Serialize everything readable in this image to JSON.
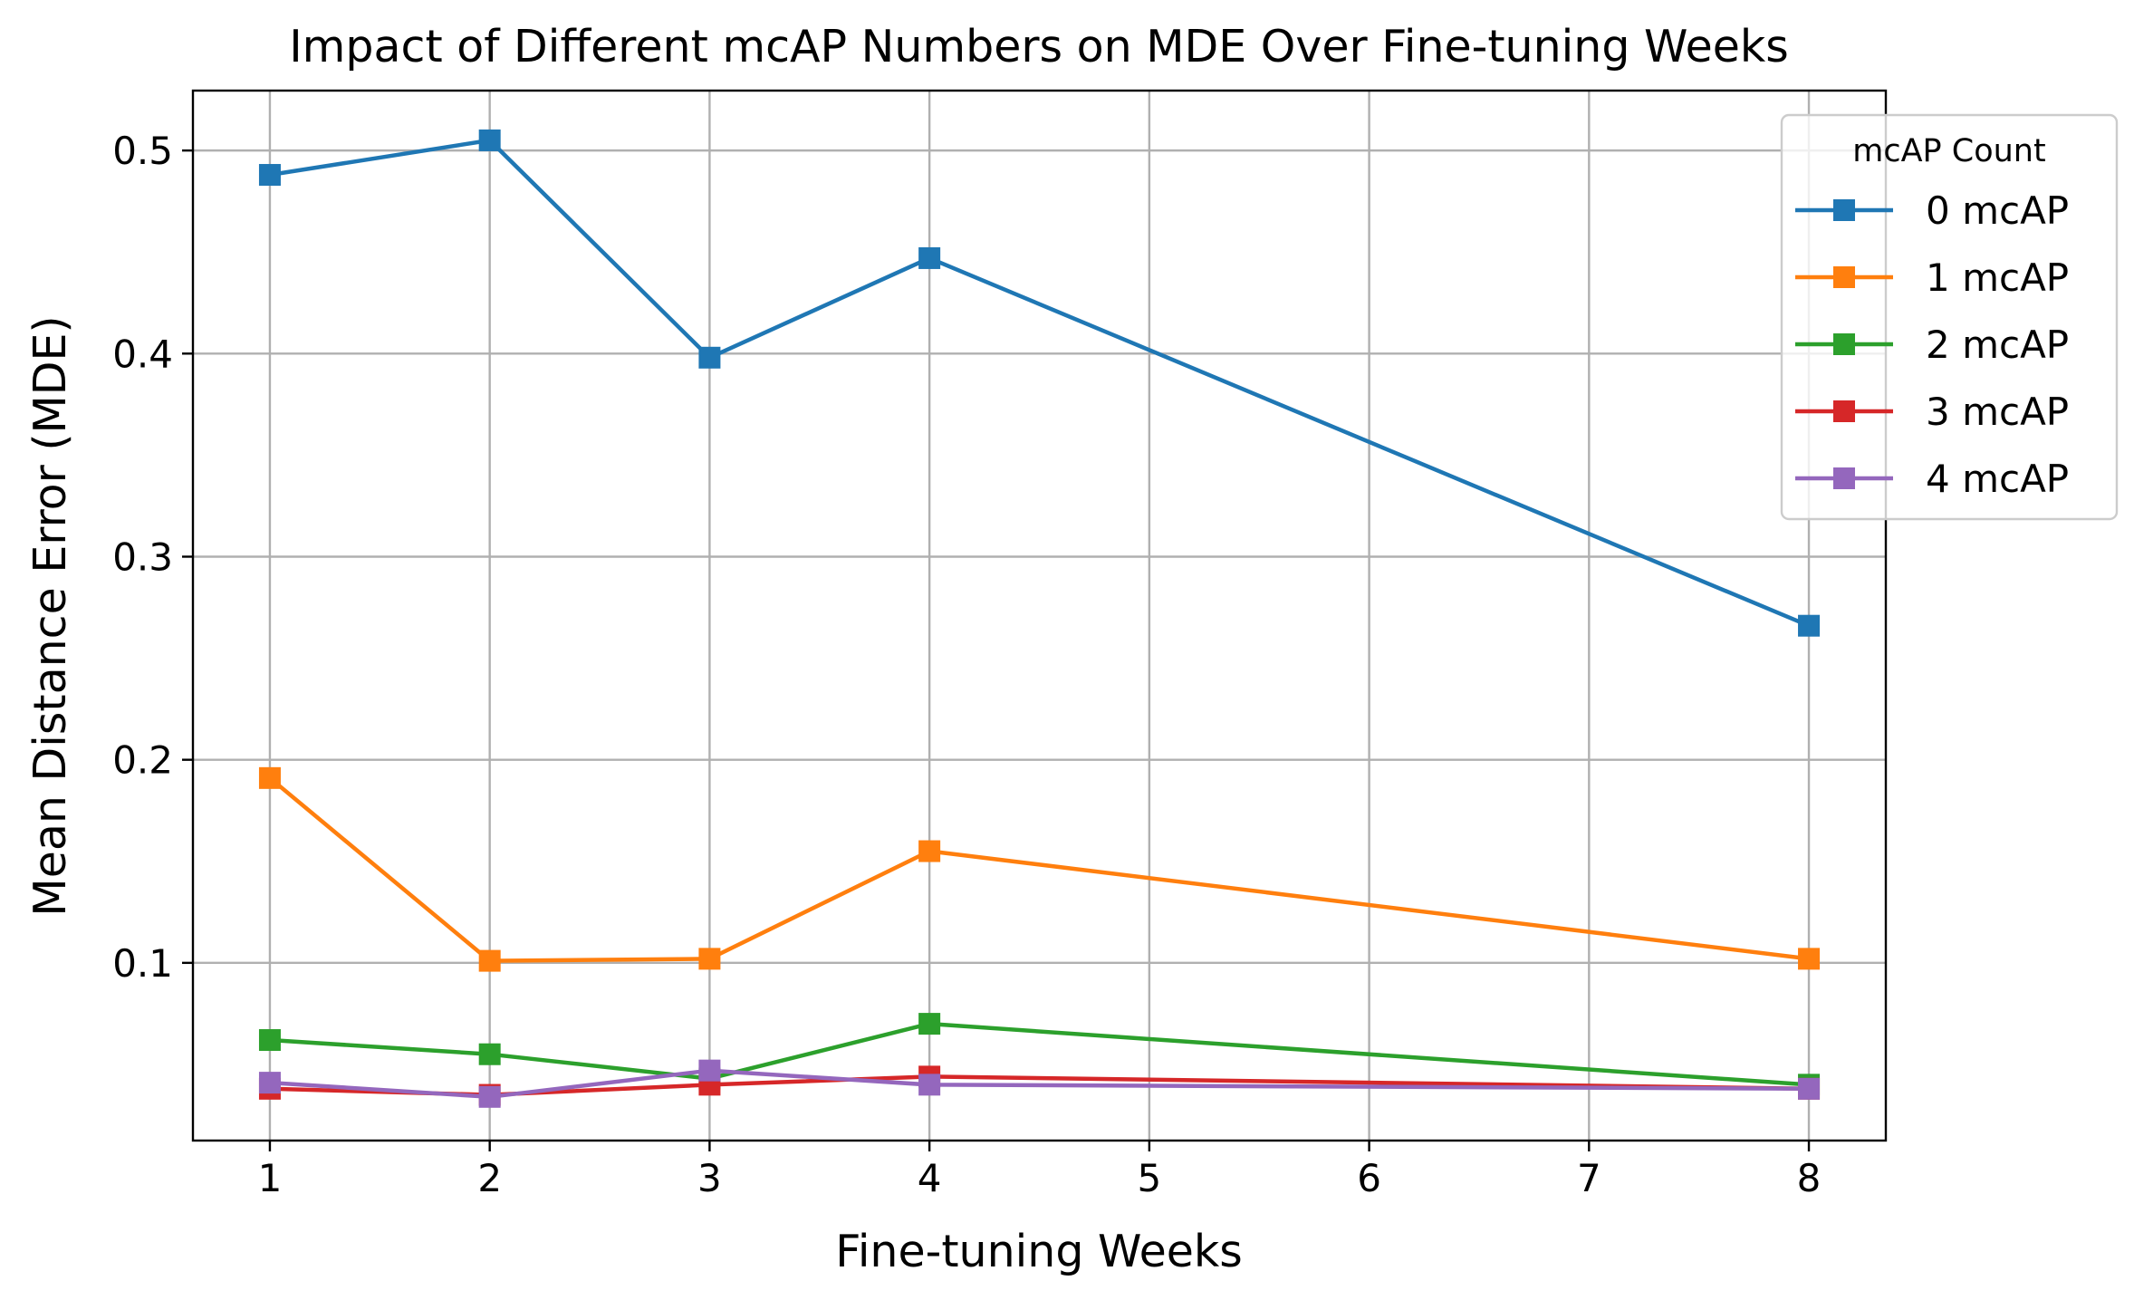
{
  "chart_data": {
    "type": "line",
    "title": "Impact of Different mcAP Numbers on MDE Over Fine-tuning Weeks",
    "xlabel": "Fine-tuning Weeks",
    "ylabel": "Mean Distance Error (MDE)",
    "xlim": [
      0.65,
      8.35
    ],
    "ylim": [
      0.0125,
      0.5295
    ],
    "xticks": [
      1,
      2,
      3,
      4,
      5,
      6,
      7,
      8
    ],
    "yticks": [
      0.1,
      0.2,
      0.3,
      0.4,
      0.5
    ],
    "xtick_labels": [
      "1",
      "2",
      "3",
      "4",
      "5",
      "6",
      "7",
      "8"
    ],
    "ytick_labels": [
      "0.1",
      "0.2",
      "0.3",
      "0.4",
      "0.5"
    ],
    "grid": true,
    "legend": {
      "title": "mcAP Count",
      "placement": "upper-right-outside"
    },
    "x": [
      1,
      2,
      3,
      4,
      8
    ],
    "series": [
      {
        "name": "0 mcAP",
        "color": "#1f77b4",
        "marker": "square",
        "values": [
          0.488,
          0.505,
          0.398,
          0.447,
          0.266
        ]
      },
      {
        "name": "1 mcAP",
        "color": "#ff7f0e",
        "marker": "square",
        "values": [
          0.191,
          0.101,
          0.102,
          0.155,
          0.102
        ]
      },
      {
        "name": "2 mcAP",
        "color": "#2ca02c",
        "marker": "square",
        "values": [
          0.062,
          0.055,
          0.043,
          0.07,
          0.04
        ]
      },
      {
        "name": "3 mcAP",
        "color": "#d62728",
        "marker": "square",
        "values": [
          0.038,
          0.035,
          0.04,
          0.044,
          0.038
        ]
      },
      {
        "name": "4 mcAP",
        "color": "#9467bd",
        "marker": "square",
        "values": [
          0.041,
          0.034,
          0.047,
          0.04,
          0.038
        ]
      }
    ]
  }
}
